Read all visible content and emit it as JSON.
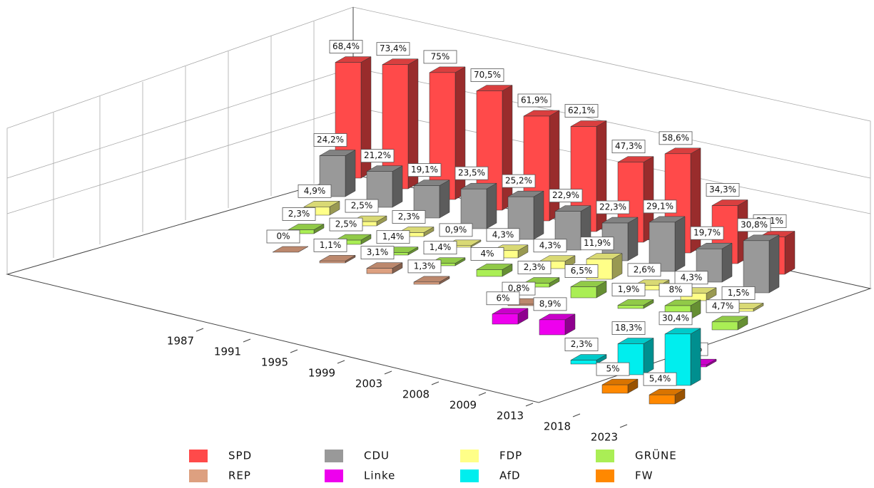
{
  "chart_data": {
    "type": "bar3d",
    "categories": [
      "1987",
      "1991",
      "1995",
      "1999",
      "2003",
      "2008",
      "2009",
      "2013",
      "2018",
      "2023"
    ],
    "ylim": [
      0,
      80
    ],
    "series": [
      {
        "name": "SPD",
        "color": "#ff4a4a",
        "values": [
          68.4,
          73.4,
          75,
          70.5,
          61.9,
          62.1,
          47.3,
          58.6,
          34.3,
          22.1
        ],
        "value_labels": [
          "68,4%",
          "73,4%",
          "75%",
          "70,5%",
          "61,9%",
          "62,1%",
          "47,3%",
          "58,6%",
          "34,3%",
          "22,1%"
        ]
      },
      {
        "name": "CDU",
        "color": "#999999",
        "values": [
          24.2,
          21.2,
          19.1,
          23.5,
          25.2,
          22.9,
          22.3,
          29.1,
          19.7,
          30.8
        ],
        "value_labels": [
          "24,2%",
          "21,2%",
          "19,1%",
          "23,5%",
          "25,2%",
          "22,9%",
          "22,3%",
          "29,1%",
          "19,7%",
          "30,8%"
        ]
      },
      {
        "name": "FDP",
        "color": "#ffff88",
        "values": [
          4.9,
          2.5,
          2.3,
          0.9,
          4.3,
          4.3,
          11.9,
          2.6,
          4.3,
          1.5
        ],
        "value_labels": [
          "4,9%",
          "2,5%",
          "2,3%",
          "0,9%",
          "4,3%",
          "4,3%",
          "11,9%",
          "2,6%",
          "4,3%",
          "1,5%"
        ]
      },
      {
        "name": "GRÜNE",
        "color": "#aaee55",
        "values": [
          2.3,
          2.5,
          1.4,
          1.4,
          4,
          2.3,
          6.5,
          1.9,
          8,
          4.7
        ],
        "value_labels": [
          "2,3%",
          "2,5%",
          "1,4%",
          "1,4%",
          "4%",
          "2,3%",
          "6,5%",
          "1,9%",
          "8%",
          "4,7%"
        ]
      },
      {
        "name": "REP",
        "color": "#dda080",
        "values": [
          0,
          1.1,
          3.1,
          1.3,
          null,
          0.8,
          null,
          null,
          null,
          null
        ],
        "value_labels": [
          "0%",
          "1,1%",
          "3,1%",
          "1,3%",
          null,
          "0,8%",
          null,
          null,
          null,
          null
        ]
      },
      {
        "name": "Linke",
        "color": "#ee00ee",
        "values": [
          null,
          null,
          null,
          null,
          null,
          6,
          8.9,
          null,
          null,
          1.2
        ],
        "value_labels": [
          null,
          null,
          null,
          null,
          null,
          "6%",
          "8,9%",
          null,
          null,
          "1,2%"
        ]
      },
      {
        "name": "AfD",
        "color": "#00eeee",
        "values": [
          null,
          null,
          null,
          null,
          null,
          null,
          null,
          2.3,
          18.3,
          30.4
        ],
        "value_labels": [
          null,
          null,
          null,
          null,
          null,
          null,
          null,
          "2,3%",
          "18,3%",
          "30,4%"
        ]
      },
      {
        "name": "FW",
        "color": "#ff8800",
        "values": [
          null,
          null,
          null,
          null,
          null,
          null,
          null,
          null,
          5,
          5.4
        ],
        "value_labels": [
          null,
          null,
          null,
          null,
          null,
          null,
          null,
          null,
          "5%",
          "5,4%"
        ]
      }
    ]
  }
}
